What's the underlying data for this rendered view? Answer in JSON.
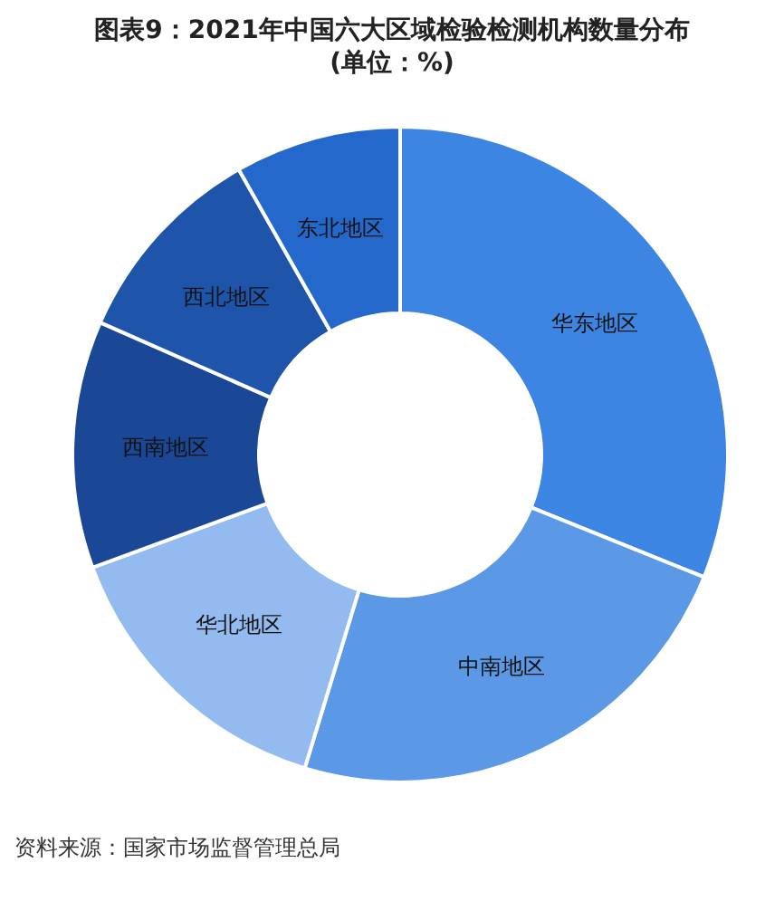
{
  "chart_data": {
    "type": "donut",
    "title": "图表9：2021年中国六大区域检验检测机构数量分布",
    "subtitle": "(单位：%)",
    "categories": [
      "华东地区",
      "中南地区",
      "华北地区",
      "西南地区",
      "西北地区",
      "东北地区"
    ],
    "values": [
      31.1,
      23.6,
      14.7,
      12.2,
      10.2,
      8.2
    ],
    "colors": [
      "#3c85e3",
      "#5b98e6",
      "#93bbf0",
      "#1a4796",
      "#1e55ab",
      "#2468cc"
    ],
    "annotations": [
      "资料来源：国家市场监督管理总局"
    ]
  }
}
